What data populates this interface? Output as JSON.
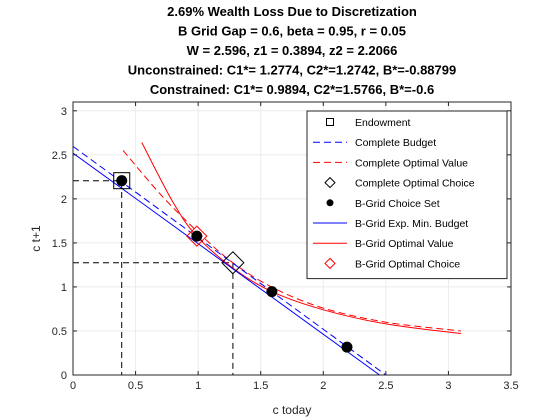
{
  "chart_data": {
    "type": "line",
    "title_lines": [
      "2.69% Wealth Loss Due to Discretization",
      "B Grid Gap = 0.6, beta = 0.95, r = 0.05",
      "W = 2.596, z1 = 0.3894, z2 = 2.2066",
      "Unconstrained: C1*= 1.2774, C2*=1.2742, B*=-0.88799",
      "Constrained: C1*= 0.9894, C2*=1.5766, B*=-0.6"
    ],
    "xlabel": "c today",
    "ylabel": "c t+1",
    "xlim": [
      0,
      3.5
    ],
    "ylim": [
      0,
      3.1
    ],
    "xticks": [
      "0",
      "0.5",
      "1",
      "1.5",
      "2",
      "2.5",
      "3",
      "3.5"
    ],
    "yticks": [
      "0",
      "0.5",
      "1",
      "1.5",
      "2",
      "2.5",
      "3"
    ],
    "grid": true,
    "legend_position": "top-right",
    "legend": [
      {
        "label": "Endowment",
        "marker": "square",
        "color": "#000000"
      },
      {
        "label": "Complete Budget",
        "line": "dashed",
        "color": "#0000ff"
      },
      {
        "label": "Complete Optimal Value",
        "line": "dashed",
        "color": "#ff0000"
      },
      {
        "label": "Complete Optimal Choice",
        "marker": "diamond",
        "color": "#000000"
      },
      {
        "label": "B-Grid Choice Set",
        "marker": "filled-circle",
        "color": "#000000"
      },
      {
        "label": "B-Grid Exp. Min. Budget",
        "line": "solid",
        "color": "#0000ff"
      },
      {
        "label": "B-Grid Optimal Value",
        "line": "solid",
        "color": "#ff0000"
      },
      {
        "label": "B-Grid Optimal Choice",
        "marker": "diamond",
        "color": "#ff0000"
      }
    ],
    "series": [
      {
        "name": "Endowment",
        "points": [
          [
            0.3894,
            2.2066
          ]
        ]
      },
      {
        "name": "Complete Budget",
        "points": [
          [
            0,
            2.596
          ],
          [
            2.5,
            0
          ]
        ]
      },
      {
        "name": "Complete Optimal Value",
        "points": [
          [
            0.4,
            2.55
          ],
          [
            0.7,
            2.05
          ],
          [
            1.0,
            1.62
          ],
          [
            1.2774,
            1.2742
          ],
          [
            1.6,
            0.99
          ],
          [
            2.0,
            0.76
          ],
          [
            2.5,
            0.6
          ],
          [
            3.1,
            0.5
          ]
        ]
      },
      {
        "name": "Complete Optimal Choice",
        "points": [
          [
            1.2774,
            1.2742
          ]
        ]
      },
      {
        "name": "B-Grid Choice Set",
        "points": [
          [
            0.3894,
            2.2066
          ],
          [
            0.9894,
            1.5766
          ],
          [
            1.5894,
            0.9466
          ],
          [
            2.1894,
            0.3166
          ]
        ]
      },
      {
        "name": "B-Grid Exp. Min. Budget",
        "points": [
          [
            0,
            2.52
          ],
          [
            2.45,
            0
          ]
        ]
      },
      {
        "name": "B-Grid Optimal Value",
        "points": [
          [
            0.55,
            2.64
          ],
          [
            0.8,
            1.96
          ],
          [
            0.9894,
            1.5766
          ],
          [
            1.3,
            1.19
          ],
          [
            1.6,
            0.94
          ],
          [
            2.0,
            0.74
          ],
          [
            2.5,
            0.58
          ],
          [
            3.1,
            0.47
          ]
        ]
      },
      {
        "name": "B-Grid Optimal Choice",
        "points": [
          [
            0.9894,
            1.5766
          ]
        ]
      }
    ],
    "reference_lines": [
      {
        "color": "#000000",
        "style": "dashed",
        "points": [
          [
            0,
            2.2066
          ],
          [
            0.3894,
            2.2066
          ],
          [
            0.3894,
            0
          ]
        ]
      },
      {
        "color": "#000000",
        "style": "dashed",
        "points": [
          [
            0,
            1.2742
          ],
          [
            1.2774,
            1.2742
          ],
          [
            1.2774,
            0
          ]
        ]
      }
    ],
    "colors": {
      "blue": "#0000ff",
      "red": "#ff0000",
      "black": "#000000",
      "grid": "#ebebeb",
      "axis": "#262626"
    }
  }
}
